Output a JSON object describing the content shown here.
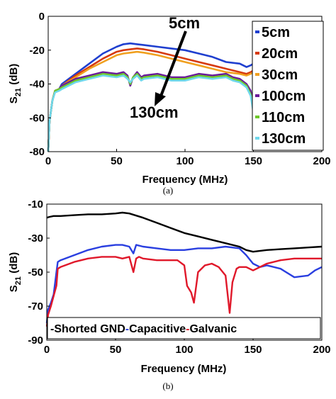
{
  "chart_data": [
    {
      "type": "line",
      "caption": "(a)",
      "xlabel": "Frequency (MHz)",
      "ylabel_main": "S",
      "ylabel_sub": "21",
      "ylabel_unit": " (dB)",
      "xlim": [
        0,
        200
      ],
      "ylim": [
        -80,
        0
      ],
      "xticks": [
        0,
        50,
        100,
        150,
        200
      ],
      "yticks": [
        -80,
        -60,
        -40,
        -20,
        0
      ],
      "grid": false,
      "legend": "right",
      "annotations": {
        "top_label": "5cm",
        "bottom_label": "130cm"
      },
      "series": [
        {
          "name": "5cm",
          "color": "#1f3fcf",
          "x": [
            0,
            1,
            3,
            5,
            8,
            10,
            20,
            30,
            40,
            50,
            55,
            60,
            65,
            70,
            80,
            90,
            100,
            110,
            120,
            130,
            140,
            145,
            148,
            150
          ],
          "y": [
            -80,
            -62,
            -50,
            -44,
            -43,
            -40,
            -34,
            -28,
            -22,
            -18,
            -16.5,
            -16,
            -16.5,
            -17,
            -18,
            -19,
            -20,
            -22,
            -24,
            -27,
            -28,
            -30,
            -29,
            -28
          ]
        },
        {
          "name": "20cm",
          "color": "#d63a10",
          "x": [
            0,
            1,
            3,
            5,
            8,
            10,
            20,
            30,
            40,
            50,
            55,
            60,
            65,
            70,
            80,
            90,
            100,
            110,
            120,
            130,
            140,
            145,
            148,
            150
          ],
          "y": [
            -80,
            -62,
            -50,
            -44,
            -43,
            -41,
            -35,
            -30,
            -25,
            -21,
            -20,
            -19.5,
            -19,
            -19.5,
            -21,
            -23,
            -25,
            -27,
            -29,
            -31,
            -33,
            -34,
            -33,
            -32
          ]
        },
        {
          "name": "30cm",
          "color": "#f0a020",
          "x": [
            0,
            1,
            3,
            5,
            8,
            10,
            20,
            30,
            40,
            50,
            55,
            60,
            65,
            70,
            80,
            90,
            100,
            110,
            120,
            130,
            140,
            145,
            148,
            150
          ],
          "y": [
            -80,
            -62,
            -50,
            -44,
            -43,
            -41,
            -36,
            -31,
            -27,
            -23,
            -22,
            -21.5,
            -21,
            -21.5,
            -23,
            -25,
            -27,
            -29,
            -31,
            -33,
            -34,
            -35,
            -34,
            -33
          ]
        },
        {
          "name": "100cm",
          "color": "#6a1a9a",
          "x": [
            0,
            1,
            3,
            5,
            8,
            10,
            20,
            30,
            40,
            50,
            55,
            58,
            60,
            62,
            65,
            68,
            70,
            80,
            90,
            100,
            110,
            120,
            130,
            135,
            140,
            145,
            148,
            150
          ],
          "y": [
            -80,
            -62,
            -50,
            -44,
            -43,
            -41,
            -37,
            -35,
            -33,
            -34,
            -33,
            -35,
            -41,
            -36,
            -33,
            -36,
            -35,
            -34,
            -36,
            -36,
            -34,
            -35,
            -34,
            -36,
            -37,
            -40,
            -44,
            -52
          ]
        },
        {
          "name": "110cm",
          "color": "#6ec82a",
          "x": [
            0,
            1,
            3,
            5,
            8,
            10,
            20,
            30,
            40,
            50,
            55,
            58,
            60,
            62,
            65,
            68,
            70,
            80,
            90,
            100,
            110,
            120,
            130,
            135,
            140,
            145,
            148,
            150
          ],
          "y": [
            -80,
            -62,
            -50,
            -44,
            -43,
            -42,
            -38,
            -36,
            -34,
            -35,
            -34,
            -36,
            -40,
            -36,
            -34,
            -37,
            -36,
            -35,
            -37,
            -37,
            -35,
            -36,
            -35,
            -37,
            -38,
            -41,
            -46,
            -56
          ]
        },
        {
          "name": "130cm",
          "color": "#70d8ec",
          "x": [
            0,
            1,
            3,
            5,
            8,
            10,
            20,
            30,
            40,
            50,
            55,
            58,
            60,
            62,
            65,
            68,
            70,
            80,
            90,
            100,
            110,
            120,
            130,
            135,
            140,
            145,
            148,
            150
          ],
          "y": [
            -80,
            -62,
            -50,
            -45,
            -44,
            -43,
            -39,
            -37,
            -35,
            -36,
            -35,
            -37,
            -39,
            -37,
            -35,
            -38,
            -37,
            -36,
            -38,
            -38,
            -36,
            -37,
            -36,
            -38,
            -39,
            -42,
            -47,
            -57
          ]
        }
      ]
    },
    {
      "type": "line",
      "caption": "(b)",
      "xlabel": "Frequency (MHz)",
      "ylabel_main": "S",
      "ylabel_sub": "21",
      "ylabel_unit": " (dB)",
      "xlim": [
        0,
        200
      ],
      "ylim": [
        -90,
        -10
      ],
      "xticks": [
        0,
        50,
        100,
        150,
        200
      ],
      "yticks": [
        -90,
        -70,
        -50,
        -30,
        -10
      ],
      "grid": false,
      "legend": "bottom",
      "series": [
        {
          "name": "Shorted GND",
          "color": "#000000",
          "x": [
            0,
            2,
            5,
            10,
            20,
            30,
            40,
            50,
            55,
            60,
            70,
            80,
            90,
            100,
            110,
            120,
            130,
            140,
            145,
            150,
            160,
            170,
            180,
            190,
            200
          ],
          "y": [
            -18,
            -17.5,
            -17,
            -17,
            -16.5,
            -16,
            -16,
            -15.5,
            -15,
            -15.5,
            -18,
            -21,
            -24,
            -27,
            -29,
            -31,
            -33,
            -35,
            -37,
            -38,
            -37,
            -36.5,
            -36,
            -35.5,
            -35
          ]
        },
        {
          "name": "Capacitive",
          "color": "#2a3fe0",
          "x": [
            0,
            1,
            3,
            5,
            7,
            8,
            10,
            20,
            30,
            40,
            50,
            55,
            60,
            63,
            65,
            70,
            80,
            90,
            100,
            110,
            120,
            130,
            140,
            145,
            150,
            155,
            160,
            170,
            180,
            190,
            195,
            200
          ],
          "y": [
            -80,
            -72,
            -68,
            -63,
            -50,
            -44,
            -43,
            -40,
            -37,
            -35,
            -34,
            -34,
            -35,
            -39,
            -34,
            -35,
            -36,
            -37,
            -37,
            -36,
            -36,
            -35,
            -36,
            -40,
            -45,
            -47,
            -46,
            -48,
            -53,
            -52,
            -49,
            -47
          ]
        },
        {
          "name": "Galvanic",
          "color": "#e0182a",
          "x": [
            0,
            1,
            3,
            5,
            7,
            8,
            10,
            20,
            30,
            40,
            50,
            55,
            60,
            63,
            65,
            67,
            70,
            80,
            90,
            95,
            100,
            102,
            105,
            107,
            110,
            115,
            120,
            125,
            130,
            133,
            135,
            138,
            140,
            145,
            150,
            155,
            160,
            170,
            180,
            190,
            200
          ],
          "y": [
            -82,
            -75,
            -70,
            -64,
            -58,
            -48,
            -47,
            -44,
            -42,
            -41,
            -41,
            -42,
            -41,
            -50,
            -42,
            -41,
            -42,
            -43,
            -43,
            -43,
            -46,
            -58,
            -62,
            -68,
            -50,
            -46,
            -45,
            -47,
            -52,
            -74,
            -56,
            -48,
            -47,
            -47,
            -49,
            -47,
            -45,
            -43,
            -42,
            -42,
            -42
          ]
        }
      ]
    }
  ]
}
